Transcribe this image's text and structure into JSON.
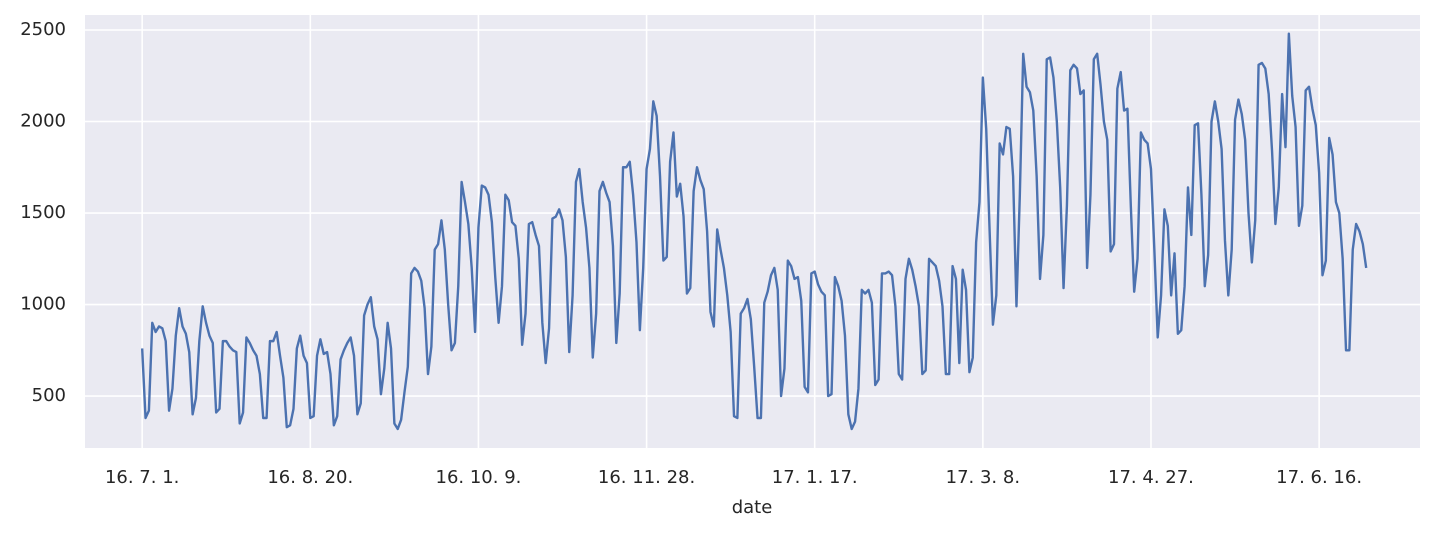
{
  "chart_data": {
    "type": "line",
    "x_label": "date",
    "color": "#4c72b0",
    "grid": true,
    "background": "#eaeaf2",
    "xlim": [
      "2016-06-14",
      "2017-07-16"
    ],
    "xticks": [
      {
        "value": "2016-07-01",
        "label": "16. 7. 1."
      },
      {
        "value": "2016-08-20",
        "label": "16. 8. 20."
      },
      {
        "value": "2016-10-09",
        "label": "16. 10. 9."
      },
      {
        "value": "2016-11-28",
        "label": "16. 11. 28."
      },
      {
        "value": "2017-01-17",
        "label": "17. 1. 17."
      },
      {
        "value": "2017-03-08",
        "label": "17. 3. 8."
      },
      {
        "value": "2017-04-27",
        "label": "17. 4. 27."
      },
      {
        "value": "2017-06-16",
        "label": "17. 6. 16."
      }
    ],
    "ylim": [
      216,
      2582
    ],
    "yticks": [
      500,
      1000,
      1500,
      2000,
      2500
    ],
    "x": [
      "2016-07-01",
      "2016-07-02",
      "2016-07-03",
      "2016-07-04",
      "2016-07-05",
      "2016-07-06",
      "2016-07-07",
      "2016-07-08",
      "2016-07-09",
      "2016-07-10",
      "2016-07-11",
      "2016-07-12",
      "2016-07-13",
      "2016-07-14",
      "2016-07-15",
      "2016-07-16",
      "2016-07-17",
      "2016-07-18",
      "2016-07-19",
      "2016-07-20",
      "2016-07-21",
      "2016-07-22",
      "2016-07-23",
      "2016-07-24",
      "2016-07-25",
      "2016-07-26",
      "2016-07-27",
      "2016-07-28",
      "2016-07-29",
      "2016-07-30",
      "2016-07-31",
      "2016-08-01",
      "2016-08-02",
      "2016-08-03",
      "2016-08-04",
      "2016-08-05",
      "2016-08-06",
      "2016-08-07",
      "2016-08-08",
      "2016-08-09",
      "2016-08-10",
      "2016-08-11",
      "2016-08-12",
      "2016-08-13",
      "2016-08-14",
      "2016-08-15",
      "2016-08-16",
      "2016-08-17",
      "2016-08-18",
      "2016-08-19",
      "2016-08-20",
      "2016-08-21",
      "2016-08-22",
      "2016-08-23",
      "2016-08-24",
      "2016-08-25",
      "2016-08-26",
      "2016-08-27",
      "2016-08-28",
      "2016-08-29",
      "2016-08-30",
      "2016-08-31",
      "2016-09-01",
      "2016-09-02",
      "2016-09-03",
      "2016-09-04",
      "2016-09-05",
      "2016-09-06",
      "2016-09-07",
      "2016-09-08",
      "2016-09-09",
      "2016-09-10",
      "2016-09-11",
      "2016-09-12",
      "2016-09-13",
      "2016-09-14",
      "2016-09-15",
      "2016-09-16",
      "2016-09-17",
      "2016-09-18",
      "2016-09-19",
      "2016-09-20",
      "2016-09-21",
      "2016-09-22",
      "2016-09-23",
      "2016-09-24",
      "2016-09-25",
      "2016-09-26",
      "2016-09-27",
      "2016-09-28",
      "2016-09-29",
      "2016-09-30",
      "2016-10-01",
      "2016-10-02",
      "2016-10-03",
      "2016-10-04",
      "2016-10-05",
      "2016-10-06",
      "2016-10-07",
      "2016-10-08",
      "2016-10-09",
      "2016-10-10",
      "2016-10-11",
      "2016-10-12",
      "2016-10-13",
      "2016-10-14",
      "2016-10-15",
      "2016-10-16",
      "2016-10-17",
      "2016-10-18",
      "2016-10-19",
      "2016-10-20",
      "2016-10-21",
      "2016-10-22",
      "2016-10-23",
      "2016-10-24",
      "2016-10-25",
      "2016-10-26",
      "2016-10-27",
      "2016-10-28",
      "2016-10-29",
      "2016-10-30",
      "2016-10-31",
      "2016-11-01",
      "2016-11-02",
      "2016-11-03",
      "2016-11-04",
      "2016-11-05",
      "2016-11-06",
      "2016-11-07",
      "2016-11-08",
      "2016-11-09",
      "2016-11-10",
      "2016-11-11",
      "2016-11-12",
      "2016-11-13",
      "2016-11-14",
      "2016-11-15",
      "2016-11-16",
      "2016-11-17",
      "2016-11-18",
      "2016-11-19",
      "2016-11-20",
      "2016-11-21",
      "2016-11-22",
      "2016-11-23",
      "2016-11-24",
      "2016-11-25",
      "2016-11-26",
      "2016-11-27",
      "2016-11-28",
      "2016-11-29",
      "2016-11-30",
      "2016-12-01",
      "2016-12-02",
      "2016-12-03",
      "2016-12-04",
      "2016-12-05",
      "2016-12-06",
      "2016-12-07",
      "2016-12-08",
      "2016-12-09",
      "2016-12-10",
      "2016-12-11",
      "2016-12-12",
      "2016-12-13",
      "2016-12-14",
      "2016-12-15",
      "2016-12-16",
      "2016-12-17",
      "2016-12-18",
      "2016-12-19",
      "2016-12-20",
      "2016-12-21",
      "2016-12-22",
      "2016-12-23",
      "2016-12-24",
      "2016-12-25",
      "2016-12-26",
      "2016-12-27",
      "2016-12-28",
      "2016-12-29",
      "2016-12-30",
      "2016-12-31",
      "2017-01-01",
      "2017-01-02",
      "2017-01-03",
      "2017-01-04",
      "2017-01-05",
      "2017-01-06",
      "2017-01-07",
      "2017-01-08",
      "2017-01-09",
      "2017-01-10",
      "2017-01-11",
      "2017-01-12",
      "2017-01-13",
      "2017-01-14",
      "2017-01-15",
      "2017-01-16",
      "2017-01-17",
      "2017-01-18",
      "2017-01-19",
      "2017-01-20",
      "2017-01-21",
      "2017-01-22",
      "2017-01-23",
      "2017-01-24",
      "2017-01-25",
      "2017-01-26",
      "2017-01-27",
      "2017-01-28",
      "2017-01-29",
      "2017-01-30",
      "2017-01-31",
      "2017-02-01",
      "2017-02-02",
      "2017-02-03",
      "2017-02-04",
      "2017-02-05",
      "2017-02-06",
      "2017-02-07",
      "2017-02-08",
      "2017-02-09",
      "2017-02-10",
      "2017-02-11",
      "2017-02-12",
      "2017-02-13",
      "2017-02-14",
      "2017-02-15",
      "2017-02-16",
      "2017-02-17",
      "2017-02-18",
      "2017-02-19",
      "2017-02-20",
      "2017-02-21",
      "2017-02-22",
      "2017-02-23",
      "2017-02-24",
      "2017-02-25",
      "2017-02-26",
      "2017-02-27",
      "2017-02-28",
      "2017-03-01",
      "2017-03-02",
      "2017-03-03",
      "2017-03-04",
      "2017-03-05",
      "2017-03-06",
      "2017-03-07",
      "2017-03-08",
      "2017-03-09",
      "2017-03-10",
      "2017-03-11",
      "2017-03-12",
      "2017-03-13",
      "2017-03-14",
      "2017-03-15",
      "2017-03-16",
      "2017-03-17",
      "2017-03-18",
      "2017-03-19",
      "2017-03-20",
      "2017-03-21",
      "2017-03-22",
      "2017-03-23",
      "2017-03-24",
      "2017-03-25",
      "2017-03-26",
      "2017-03-27",
      "2017-03-28",
      "2017-03-29",
      "2017-03-30",
      "2017-03-31",
      "2017-04-01",
      "2017-04-02",
      "2017-04-03",
      "2017-04-04",
      "2017-04-05",
      "2017-04-06",
      "2017-04-07",
      "2017-04-08",
      "2017-04-09",
      "2017-04-10",
      "2017-04-11",
      "2017-04-12",
      "2017-04-13",
      "2017-04-14",
      "2017-04-15",
      "2017-04-16",
      "2017-04-17",
      "2017-04-18",
      "2017-04-19",
      "2017-04-20",
      "2017-04-21",
      "2017-04-22",
      "2017-04-23",
      "2017-04-24",
      "2017-04-25",
      "2017-04-26",
      "2017-04-27",
      "2017-04-28",
      "2017-04-29",
      "2017-04-30",
      "2017-05-01",
      "2017-05-02",
      "2017-05-03",
      "2017-05-04",
      "2017-05-05",
      "2017-05-06",
      "2017-05-07",
      "2017-05-08",
      "2017-05-09",
      "2017-05-10",
      "2017-05-11",
      "2017-05-12",
      "2017-05-13",
      "2017-05-14",
      "2017-05-15",
      "2017-05-16",
      "2017-05-17",
      "2017-05-18",
      "2017-05-19",
      "2017-05-20",
      "2017-05-21",
      "2017-05-22",
      "2017-05-23",
      "2017-05-24",
      "2017-05-25",
      "2017-05-26",
      "2017-05-27",
      "2017-05-28",
      "2017-05-29",
      "2017-05-30",
      "2017-05-31",
      "2017-06-01",
      "2017-06-02",
      "2017-06-03",
      "2017-06-04",
      "2017-06-05",
      "2017-06-06",
      "2017-06-07",
      "2017-06-08",
      "2017-06-09",
      "2017-06-10",
      "2017-06-11",
      "2017-06-12",
      "2017-06-13",
      "2017-06-14",
      "2017-06-15",
      "2017-06-16",
      "2017-06-17",
      "2017-06-18",
      "2017-06-19",
      "2017-06-20",
      "2017-06-21",
      "2017-06-22",
      "2017-06-23",
      "2017-06-24",
      "2017-06-25",
      "2017-06-26",
      "2017-06-27",
      "2017-06-28",
      "2017-06-29",
      "2017-06-30"
    ],
    "values": [
      760,
      380,
      420,
      900,
      850,
      880,
      870,
      800,
      420,
      540,
      830,
      980,
      880,
      840,
      740,
      400,
      490,
      800,
      990,
      900,
      830,
      790,
      410,
      430,
      800,
      800,
      770,
      750,
      740,
      350,
      410,
      820,
      790,
      750,
      720,
      620,
      380,
      380,
      800,
      800,
      850,
      720,
      600,
      330,
      340,
      430,
      760,
      830,
      720,
      680,
      380,
      390,
      720,
      810,
      730,
      740,
      620,
      340,
      390,
      700,
      750,
      790,
      820,
      720,
      400,
      460,
      940,
      1000,
      1040,
      880,
      810,
      510,
      650,
      900,
      760,
      350,
      320,
      370,
      520,
      660,
      1170,
      1200,
      1180,
      1130,
      980,
      620,
      770,
      1300,
      1330,
      1460,
      1300,
      1000,
      750,
      790,
      1100,
      1670,
      1560,
      1440,
      1200,
      850,
      1420,
      1650,
      1640,
      1600,
      1450,
      1150,
      900,
      1100,
      1600,
      1570,
      1450,
      1430,
      1250,
      780,
      950,
      1440,
      1450,
      1380,
      1320,
      900,
      680,
      870,
      1470,
      1480,
      1520,
      1460,
      1260,
      740,
      1050,
      1670,
      1740,
      1560,
      1420,
      1200,
      710,
      950,
      1620,
      1670,
      1610,
      1560,
      1320,
      790,
      1060,
      1750,
      1750,
      1780,
      1600,
      1340,
      860,
      1200,
      1740,
      1850,
      2110,
      2030,
      1700,
      1240,
      1260,
      1780,
      1940,
      1590,
      1660,
      1480,
      1060,
      1090,
      1620,
      1750,
      1680,
      1630,
      1400,
      960,
      880,
      1410,
      1300,
      1200,
      1050,
      850,
      390,
      380,
      950,
      980,
      1030,
      920,
      660,
      380,
      380,
      1010,
      1070,
      1160,
      1200,
      1080,
      500,
      650,
      1240,
      1210,
      1140,
      1150,
      1020,
      550,
      520,
      1170,
      1180,
      1110,
      1070,
      1050,
      500,
      510,
      1150,
      1100,
      1020,
      830,
      400,
      320,
      360,
      540,
      1080,
      1060,
      1080,
      1010,
      560,
      590,
      1170,
      1170,
      1180,
      1160,
      990,
      620,
      590,
      1140,
      1250,
      1190,
      1100,
      990,
      620,
      640,
      1250,
      1230,
      1210,
      1130,
      990,
      620,
      620,
      1210,
      1140,
      680,
      1190,
      1080,
      630,
      710,
      1340,
      1560,
      2240,
      1960,
      1410,
      890,
      1050,
      1880,
      1820,
      1970,
      1960,
      1700,
      990,
      1600,
      2370,
      2190,
      2160,
      2060,
      1700,
      1140,
      1380,
      2340,
      2350,
      2240,
      2000,
      1640,
      1090,
      1540,
      2280,
      2310,
      2290,
      2150,
      2170,
      1200,
      1600,
      2340,
      2370,
      2200,
      2000,
      1900,
      1290,
      1330,
      2180,
      2270,
      2060,
      2070,
      1540,
      1070,
      1250,
      1940,
      1900,
      1880,
      1740,
      1300,
      820,
      1050,
      1520,
      1430,
      1050,
      1280,
      840,
      860,
      1100,
      1640,
      1380,
      1980,
      1990,
      1600,
      1100,
      1270,
      2000,
      2110,
      2000,
      1850,
      1350,
      1050,
      1300,
      2010,
      2120,
      2040,
      1900,
      1500,
      1230,
      1460,
      2310,
      2320,
      2290,
      2150,
      1840,
      1440,
      1640,
      2150,
      1860,
      2480,
      2140,
      1970,
      1430,
      1540,
      2170,
      2190,
      2070,
      1980,
      1720,
      1160,
      1240,
      1910,
      1820,
      1560,
      1500,
      1250,
      750,
      750,
      1300,
      1440,
      1400,
      1330,
      1200
    ]
  }
}
